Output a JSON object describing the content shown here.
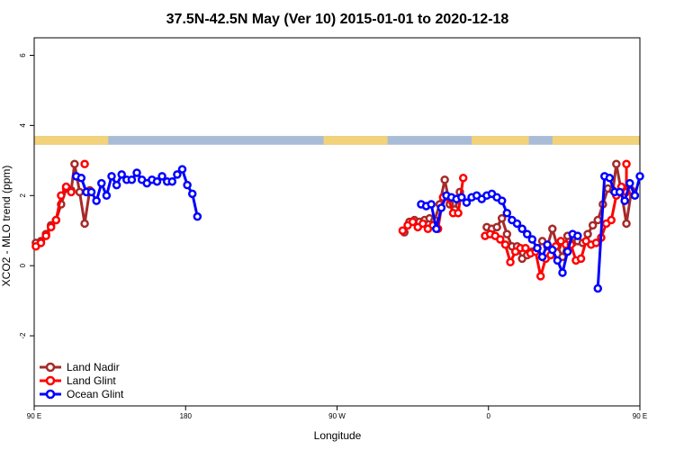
{
  "chart_data": {
    "type": "line",
    "title": "37.5N-42.5N May (Ver 10)   2015-01-01 to 2020-12-18",
    "xlabel": "Longitude",
    "ylabel": "XCO2 - MLO trend (ppm)",
    "xlim": [
      90,
      450
    ],
    "ylim": [
      -4,
      6.5
    ],
    "x_ticks": [
      {
        "value": 90,
        "label": "90 E"
      },
      {
        "value": 180,
        "label": "180"
      },
      {
        "value": 270,
        "label": "90 W"
      },
      {
        "value": 360,
        "label": "0"
      },
      {
        "value": 450,
        "label": "90 E"
      },
      {
        "value": 540,
        "label": "180"
      }
    ],
    "y_ticks": [
      {
        "value": -2,
        "label": "-2"
      },
      {
        "value": 0,
        "label": "0"
      },
      {
        "value": 2,
        "label": "2"
      },
      {
        "value": 4,
        "label": "4"
      },
      {
        "value": 6,
        "label": "6"
      }
    ],
    "land_ocean_strip": {
      "y_range": [
        3.45,
        3.7
      ],
      "land_color": "#F2D27A",
      "ocean_color": "#A8BCD8",
      "land_segments": [
        [
          90,
          134
        ],
        [
          262,
          300
        ],
        [
          350,
          384
        ],
        [
          398,
          452
        ],
        [
          497,
          540
        ]
      ]
    },
    "legend_position": "bottom-left",
    "series": [
      {
        "name": "Land Nadir",
        "color": "#A52A2A",
        "points": [
          [
            91,
            0.65
          ],
          [
            94,
            0.7
          ],
          [
            97,
            0.9
          ],
          [
            100,
            1.15
          ],
          [
            103,
            1.3
          ],
          [
            106,
            1.75
          ],
          [
            109,
            2.2
          ],
          [
            112,
            2.15
          ],
          [
            114,
            2.9
          ],
          [
            117,
            2.1
          ],
          [
            120,
            1.2
          ],
          [
            123,
            2.15
          ],
          [
            310,
            0.95
          ],
          [
            313,
            1.25
          ],
          [
            316,
            1.3
          ],
          [
            319,
            1.25
          ],
          [
            322,
            1.3
          ],
          [
            325,
            1.35
          ],
          [
            328,
            1.3
          ],
          [
            331,
            1.75
          ],
          [
            334,
            2.45
          ],
          [
            337,
            1.75
          ],
          [
            340,
            1.6
          ],
          [
            343,
            2.1
          ],
          [
            359,
            1.1
          ],
          [
            362,
            1.05
          ],
          [
            365,
            1.1
          ],
          [
            368,
            1.35
          ],
          [
            371,
            0.9
          ],
          [
            374,
            0.55
          ],
          [
            377,
            0.55
          ],
          [
            380,
            0.2
          ],
          [
            383,
            0.3
          ],
          [
            386,
            0.4
          ],
          [
            389,
            0.5
          ],
          [
            392,
            0.7
          ],
          [
            395,
            0.55
          ],
          [
            398,
            1.05
          ],
          [
            401,
            0.55
          ],
          [
            404,
            0.25
          ],
          [
            407,
            0.85
          ],
          [
            410,
            0.65
          ],
          [
            413,
            0.7
          ],
          [
            416,
            0.65
          ],
          [
            419,
            0.9
          ],
          [
            422,
            1.15
          ],
          [
            425,
            1.3
          ],
          [
            428,
            1.75
          ],
          [
            431,
            2.2
          ],
          [
            434,
            2.15
          ],
          [
            436,
            2.9
          ],
          [
            439,
            2.1
          ],
          [
            442,
            1.2
          ],
          [
            445,
            2.15
          ]
        ]
      },
      {
        "name": "Land Glint",
        "color": "#FF0000",
        "points": [
          [
            91,
            0.55
          ],
          [
            94,
            0.65
          ],
          [
            97,
            0.85
          ],
          [
            100,
            1.1
          ],
          [
            103,
            1.3
          ],
          [
            106,
            2.0
          ],
          [
            109,
            2.25
          ],
          [
            112,
            2.1
          ],
          [
            120,
            2.9
          ],
          [
            309,
            1.0
          ],
          [
            312,
            1.15
          ],
          [
            315,
            1.25
          ],
          [
            318,
            1.1
          ],
          [
            321,
            1.2
          ],
          [
            324,
            1.05
          ],
          [
            327,
            1.15
          ],
          [
            330,
            1.05
          ],
          [
            333,
            1.95
          ],
          [
            336,
            1.95
          ],
          [
            339,
            1.5
          ],
          [
            342,
            1.5
          ],
          [
            345,
            2.5
          ],
          [
            358,
            0.85
          ],
          [
            361,
            0.9
          ],
          [
            364,
            0.85
          ],
          [
            367,
            0.75
          ],
          [
            370,
            0.6
          ],
          [
            373,
            0.1
          ],
          [
            376,
            0.4
          ],
          [
            379,
            0.5
          ],
          [
            382,
            0.5
          ],
          [
            385,
            0.35
          ],
          [
            388,
            0.4
          ],
          [
            391,
            -0.3
          ],
          [
            394,
            0.2
          ],
          [
            397,
            0.3
          ],
          [
            400,
            0.55
          ],
          [
            403,
            0.7
          ],
          [
            406,
            0.6
          ],
          [
            409,
            0.6
          ],
          [
            412,
            0.15
          ],
          [
            415,
            0.2
          ],
          [
            418,
            0.7
          ],
          [
            421,
            0.6
          ],
          [
            424,
            0.65
          ],
          [
            427,
            0.8
          ],
          [
            430,
            1.2
          ],
          [
            433,
            1.3
          ],
          [
            436,
            2.0
          ],
          [
            439,
            2.25
          ],
          [
            442,
            2.1
          ],
          [
            442,
            2.9
          ]
        ]
      },
      {
        "name": "Ocean Glint",
        "color": "#0000FF",
        "points": [
          [
            115,
            2.55
          ],
          [
            118,
            2.5
          ],
          [
            121,
            2.1
          ],
          [
            124,
            2.1
          ],
          [
            127,
            1.85
          ],
          [
            130,
            2.35
          ],
          [
            133,
            2.0
          ],
          [
            136,
            2.55
          ],
          [
            139,
            2.3
          ],
          [
            142,
            2.6
          ],
          [
            145,
            2.45
          ],
          [
            148,
            2.45
          ],
          [
            151,
            2.65
          ],
          [
            154,
            2.45
          ],
          [
            157,
            2.35
          ],
          [
            160,
            2.45
          ],
          [
            163,
            2.4
          ],
          [
            166,
            2.55
          ],
          [
            169,
            2.4
          ],
          [
            172,
            2.4
          ],
          [
            175,
            2.6
          ],
          [
            178,
            2.75
          ],
          [
            181,
            2.3
          ],
          [
            184,
            2.05
          ],
          [
            187,
            1.4
          ],
          [
            320,
            1.75
          ],
          [
            323,
            1.7
          ],
          [
            326,
            1.75
          ],
          [
            329,
            1.05
          ],
          [
            332,
            1.65
          ],
          [
            335,
            2.0
          ],
          [
            338,
            1.95
          ],
          [
            341,
            1.9
          ],
          [
            344,
            1.95
          ],
          [
            347,
            1.8
          ],
          [
            350,
            1.95
          ],
          [
            353,
            2.0
          ],
          [
            356,
            1.9
          ],
          [
            359,
            2.0
          ],
          [
            362,
            2.05
          ],
          [
            365,
            1.95
          ],
          [
            368,
            1.85
          ],
          [
            371,
            1.5
          ],
          [
            374,
            1.3
          ],
          [
            377,
            1.2
          ],
          [
            380,
            1.05
          ],
          [
            383,
            0.9
          ],
          [
            386,
            0.75
          ],
          [
            389,
            0.5
          ],
          [
            392,
            0.25
          ],
          [
            395,
            0.6
          ],
          [
            398,
            0.45
          ],
          [
            401,
            0.15
          ],
          [
            404,
            -0.2
          ],
          [
            407,
            0.4
          ],
          [
            410,
            0.9
          ],
          [
            413,
            0.85
          ],
          [
            425,
            -0.65
          ],
          [
            429,
            2.55
          ],
          [
            432,
            2.5
          ],
          [
            435,
            2.1
          ],
          [
            438,
            2.1
          ],
          [
            441,
            1.85
          ],
          [
            444,
            2.35
          ],
          [
            447,
            2.0
          ],
          [
            450,
            2.55
          ]
        ]
      }
    ]
  }
}
